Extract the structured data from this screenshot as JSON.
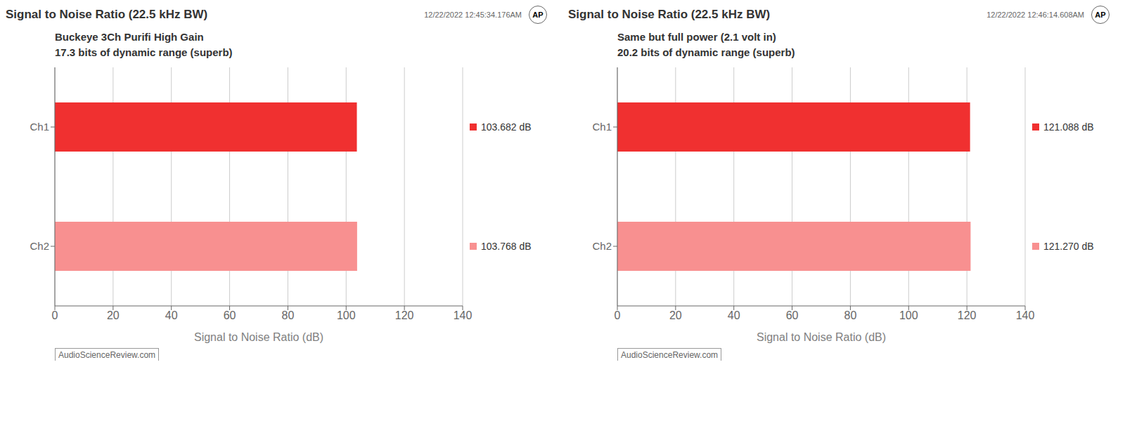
{
  "chart_data": [
    {
      "type": "bar",
      "orientation": "horizontal",
      "title": "Signal to Noise Ratio (22.5 kHz BW)",
      "timestamp": "12/22/2022 12:45:34.176AM",
      "logo": "AP",
      "annotations": [
        "Buckeye 3Ch Purifi High Gain",
        "17.3 bits of dynamic range (superb)"
      ],
      "watermark": "AudioScienceReview.com",
      "categories": [
        "Ch1",
        "Ch2"
      ],
      "values": [
        103.682,
        103.768
      ],
      "value_labels": [
        "103.682 dB",
        "103.768 dB"
      ],
      "data_labels": true,
      "colors": [
        "#f03030",
        "#f89090"
      ],
      "xlabel": "Signal to Noise Ratio (dB)",
      "xlim": [
        0,
        140
      ],
      "xticks": [
        0,
        20,
        40,
        60,
        80,
        100,
        120,
        140
      ],
      "grid": true
    },
    {
      "type": "bar",
      "orientation": "horizontal",
      "title": "Signal to Noise Ratio (22.5 kHz BW)",
      "timestamp": "12/22/2022 12:46:14.608AM",
      "logo": "AP",
      "annotations": [
        "Same but full power (2.1 volt in)",
        "20.2 bits of dynamic range (superb)"
      ],
      "watermark": "AudioScienceReview.com",
      "categories": [
        "Ch1",
        "Ch2"
      ],
      "values": [
        121.088,
        121.27
      ],
      "value_labels": [
        "121.088 dB",
        "121.270 dB"
      ],
      "data_labels": true,
      "colors": [
        "#f03030",
        "#f89090"
      ],
      "xlabel": "Signal to Noise Ratio (dB)",
      "xlim": [
        0,
        140
      ],
      "xticks": [
        0,
        20,
        40,
        60,
        80,
        100,
        120,
        140
      ],
      "grid": true
    }
  ]
}
